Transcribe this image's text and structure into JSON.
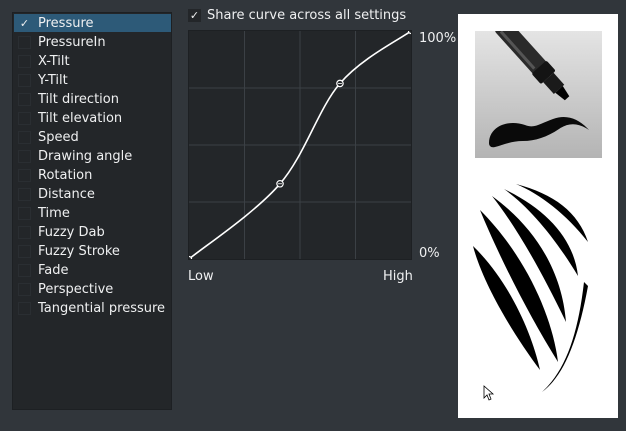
{
  "sensors": [
    {
      "label": "Pressure",
      "checked": true,
      "selected": true
    },
    {
      "label": "PressureIn",
      "checked": false,
      "selected": false
    },
    {
      "label": "X-Tilt",
      "checked": false,
      "selected": false
    },
    {
      "label": "Y-Tilt",
      "checked": false,
      "selected": false
    },
    {
      "label": "Tilt direction",
      "checked": false,
      "selected": false
    },
    {
      "label": "Tilt elevation",
      "checked": false,
      "selected": false
    },
    {
      "label": "Speed",
      "checked": false,
      "selected": false
    },
    {
      "label": "Drawing angle",
      "checked": false,
      "selected": false
    },
    {
      "label": "Rotation",
      "checked": false,
      "selected": false
    },
    {
      "label": "Distance",
      "checked": false,
      "selected": false
    },
    {
      "label": "Time",
      "checked": false,
      "selected": false
    },
    {
      "label": "Fuzzy Dab",
      "checked": false,
      "selected": false
    },
    {
      "label": "Fuzzy Stroke",
      "checked": false,
      "selected": false
    },
    {
      "label": "Fade",
      "checked": false,
      "selected": false
    },
    {
      "label": "Perspective",
      "checked": false,
      "selected": false
    },
    {
      "label": "Tangential pressure",
      "checked": false,
      "selected": false
    }
  ],
  "share_curve": {
    "label": "Share curve across all settings",
    "checked": true,
    "check_glyph": "✓"
  },
  "curve": {
    "y_max_label": "100%",
    "y_min_label": "0%",
    "x_min_label": "Low",
    "x_max_label": "High",
    "control_points": [
      [
        0.0,
        0.0
      ],
      [
        0.41,
        0.33
      ],
      [
        0.68,
        0.77
      ],
      [
        1.0,
        1.0
      ]
    ]
  },
  "preview": {
    "icon": "brush-pen-icon",
    "sample": "brush-stroke-preview"
  }
}
